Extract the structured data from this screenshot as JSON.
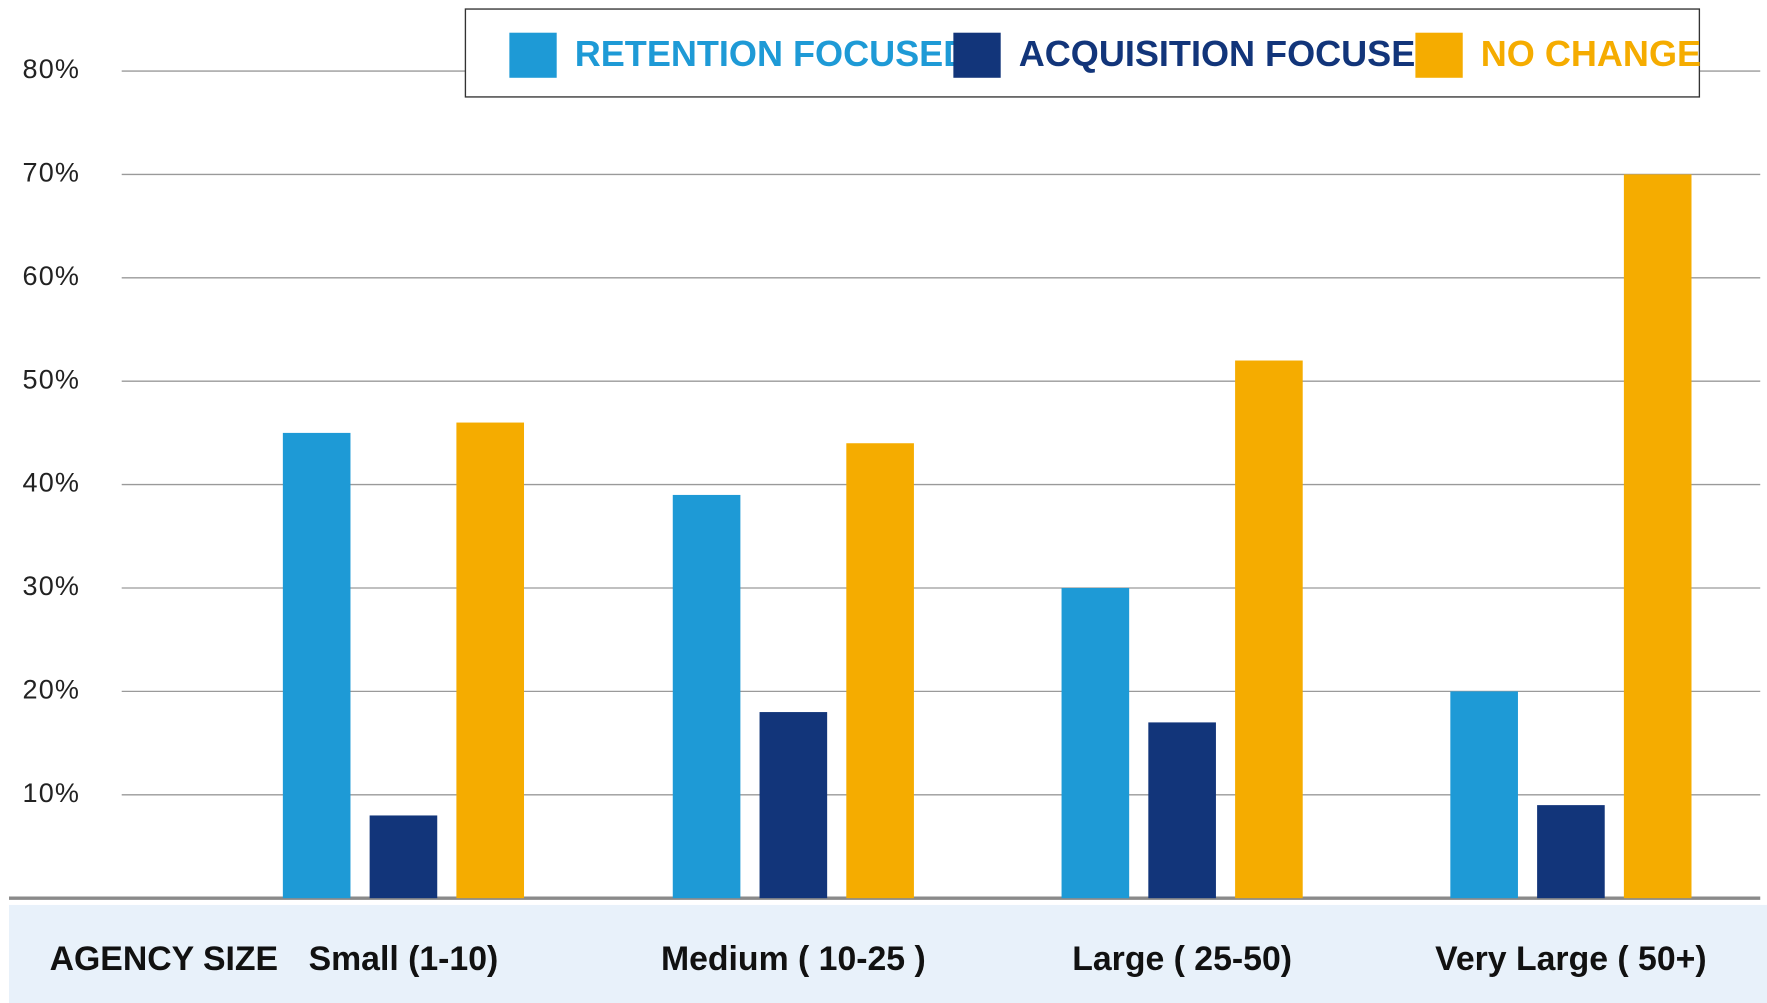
{
  "chart_data": {
    "type": "bar",
    "xlabel": "AGENCY SIZE",
    "categories": [
      "Small (1-10)",
      "Medium ( 10-25 )",
      "Large ( 25-50)",
      "Very Large ( 50+)"
    ],
    "series": [
      {
        "name": "RETENTION FOCUSED",
        "color": "#1e9ad6",
        "values": [
          45,
          39,
          30,
          20
        ]
      },
      {
        "name": "ACQUISITION FOCUSED",
        "color": "#12357a",
        "values": [
          8,
          18,
          17,
          9
        ]
      },
      {
        "name": "NO CHANGE",
        "color": "#f5ac00",
        "values": [
          46,
          44,
          52,
          70
        ]
      }
    ],
    "ylim": [
      0,
      80
    ],
    "yticks": [
      {
        "value": 10,
        "label": "10%"
      },
      {
        "value": 20,
        "label": "20%"
      },
      {
        "value": 30,
        "label": "30%"
      },
      {
        "value": 40,
        "label": "40%"
      },
      {
        "value": 50,
        "label": "50%"
      },
      {
        "value": 60,
        "label": "60%"
      },
      {
        "value": 70,
        "label": "70%"
      },
      {
        "value": 80,
        "label": "80%"
      }
    ],
    "grid": true
  }
}
